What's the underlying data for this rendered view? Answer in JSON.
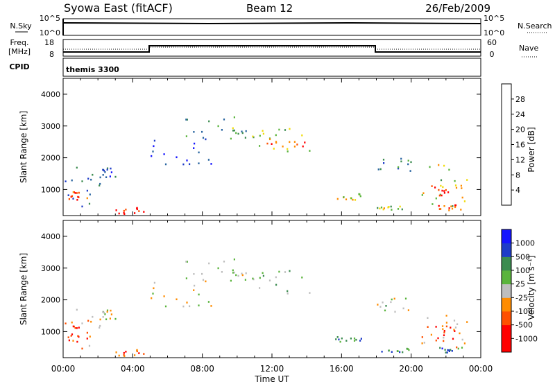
{
  "header": {
    "station": "Syowa East (fitACF)",
    "beam": "Beam 12",
    "date": "26/Feb/2009"
  },
  "top_panels": {
    "nsky_label": "N.Sky",
    "nsky_ticks": [
      "10^5",
      "10^0"
    ],
    "nsearch_label": "N.Search",
    "nsearch_ticks": [
      "10^5",
      "10^0"
    ],
    "freq_label_line1": "Freq.",
    "freq_label_line2": "[MHz]",
    "freq_ticks": [
      "18",
      "8"
    ],
    "nave_label": "Nave",
    "nave_ticks": [
      "60",
      "0"
    ],
    "cpid_label": "CPID",
    "cpid_value": "themis 3300"
  },
  "colors": {
    "power_scale": [
      "#1414ff",
      "#1e3cc8",
      "#2864a0",
      "#3c8c50",
      "#5ab43c",
      "#f0dc0a",
      "#ff8c00",
      "#ff5000",
      "#ff0000"
    ],
    "velocity_scale": [
      "#ff0000",
      "#ff5000",
      "#ff8c00",
      "#bebebe",
      "#5ab43c",
      "#3c8c50",
      "#1e3cc8",
      "#1414ff"
    ]
  },
  "chart_data": [
    {
      "type": "heatmap",
      "name": "power",
      "ylabel": "Slant Range [km]",
      "xlabel": "Time UT",
      "y_ticks": [
        1000,
        2000,
        3000,
        4000
      ],
      "x_ticks": [
        "00:00",
        "04:00",
        "08:00",
        "12:00",
        "16:00",
        "20:00",
        "00:00"
      ],
      "xlim_hours": [
        0,
        24
      ],
      "ylim_km": [
        180,
        4500
      ],
      "colorbar": {
        "label": "Power [dB]",
        "ticks": [
          "4",
          "8",
          "12",
          "16",
          "20",
          "24",
          "28"
        ],
        "range": [
          0,
          30
        ]
      },
      "regions": [
        {
          "t": [
            0.1,
            2.2
          ],
          "r": [
            400,
            1800
          ],
          "level": 0.3
        },
        {
          "t": [
            0.2,
            1.4
          ],
          "r": [
            700,
            1000
          ],
          "level": 0.85
        },
        {
          "t": [
            2.0,
            3.0
          ],
          "r": [
            1400,
            1700
          ],
          "level": 0.25
        },
        {
          "t": [
            3.0,
            4.6
          ],
          "r": [
            250,
            450
          ],
          "level": 0.95
        },
        {
          "t": [
            5.0,
            8.5
          ],
          "r": [
            1800,
            2600
          ],
          "level": 0.2
        },
        {
          "t": [
            7.0,
            10.5
          ],
          "r": [
            2600,
            3400
          ],
          "level": 0.35
        },
        {
          "t": [
            9.5,
            14.5
          ],
          "r": [
            2200,
            3000
          ],
          "level": 0.5
        },
        {
          "t": [
            11.5,
            14.0
          ],
          "r": [
            2300,
            2700
          ],
          "level": 0.8
        },
        {
          "t": [
            15.5,
            17.2
          ],
          "r": [
            700,
            900
          ],
          "level": 0.6
        },
        {
          "t": [
            18.0,
            20.0
          ],
          "r": [
            380,
            500
          ],
          "level": 0.55
        },
        {
          "t": [
            18.0,
            20.5
          ],
          "r": [
            1600,
            2100
          ],
          "level": 0.3
        },
        {
          "t": [
            20.5,
            23.2
          ],
          "r": [
            500,
            1800
          ],
          "level": 0.55
        },
        {
          "t": [
            21.0,
            23.0
          ],
          "r": [
            800,
            1200
          ],
          "level": 0.9
        },
        {
          "t": [
            21.5,
            23.0
          ],
          "r": [
            350,
            550
          ],
          "level": 0.85
        }
      ]
    },
    {
      "type": "heatmap",
      "name": "velocity",
      "ylabel": "Slant Range [km]",
      "xlabel": "Time UT",
      "y_ticks": [
        1000,
        2000,
        3000,
        4000
      ],
      "x_ticks": [
        "00:00",
        "04:00",
        "08:00",
        "12:00",
        "16:00",
        "20:00",
        "00:00"
      ],
      "xlim_hours": [
        0,
        24
      ],
      "ylim_km": [
        180,
        4500
      ],
      "colorbar": {
        "label": "Velocity [m s⁻¹]",
        "ticks": [
          "-1000",
          "-500",
          "-100",
          "-25",
          "25",
          "100",
          "500",
          "1000"
        ],
        "range": [
          -1000,
          1000
        ]
      },
      "regions": [
        {
          "t": [
            0.1,
            2.2
          ],
          "r": [
            400,
            1800
          ],
          "level": 0.35
        },
        {
          "t": [
            0.2,
            1.4
          ],
          "r": [
            700,
            1300
          ],
          "level": 0.05
        },
        {
          "t": [
            2.0,
            3.0
          ],
          "r": [
            1400,
            1700
          ],
          "level": 0.45
        },
        {
          "t": [
            3.0,
            4.6
          ],
          "r": [
            250,
            450
          ],
          "level": 0.2
        },
        {
          "t": [
            5.0,
            8.5
          ],
          "r": [
            1800,
            2600
          ],
          "level": 0.48
        },
        {
          "t": [
            7.0,
            10.5
          ],
          "r": [
            2600,
            3400
          ],
          "level": 0.5
        },
        {
          "t": [
            9.5,
            14.5
          ],
          "r": [
            2200,
            3000
          ],
          "level": 0.49
        },
        {
          "t": [
            15.5,
            17.2
          ],
          "r": [
            700,
            900
          ],
          "level": 0.7
        },
        {
          "t": [
            18.0,
            20.0
          ],
          "r": [
            380,
            500
          ],
          "level": 0.72
        },
        {
          "t": [
            18.0,
            20.5
          ],
          "r": [
            1600,
            2100
          ],
          "level": 0.48
        },
        {
          "t": [
            20.5,
            23.2
          ],
          "r": [
            500,
            1800
          ],
          "level": 0.3
        },
        {
          "t": [
            21.0,
            23.0
          ],
          "r": [
            800,
            1200
          ],
          "level": 0.12
        },
        {
          "t": [
            21.5,
            23.0
          ],
          "r": [
            350,
            550
          ],
          "level": 0.75
        }
      ]
    }
  ]
}
